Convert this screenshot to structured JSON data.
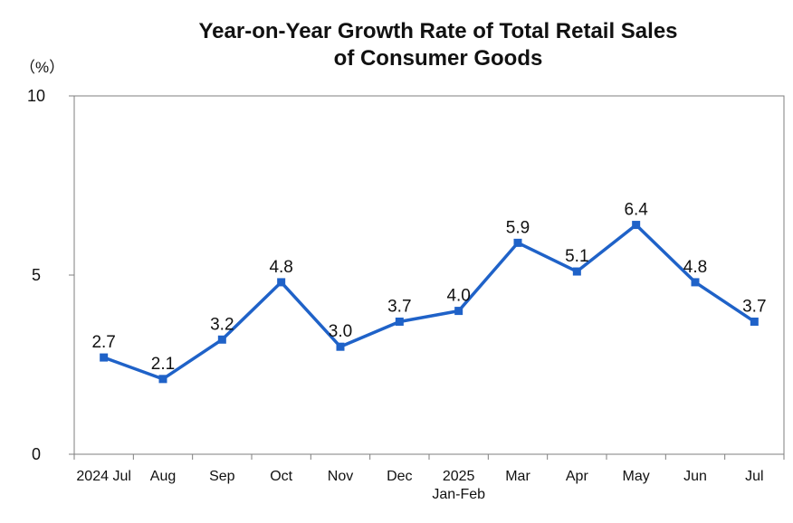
{
  "chart_data": {
    "type": "line",
    "title_line1": "Year-on-Year Growth Rate of Total Retail Sales",
    "title_line2": "of Consumer Goods",
    "ylabel": "（%）",
    "ylim": [
      0,
      10
    ],
    "yticks": [
      "0",
      "5",
      "10"
    ],
    "categories": [
      {
        "line1": "2024 Jul",
        "line2": ""
      },
      {
        "line1": "Aug",
        "line2": ""
      },
      {
        "line1": "Sep",
        "line2": ""
      },
      {
        "line1": "Oct",
        "line2": ""
      },
      {
        "line1": "Nov",
        "line2": ""
      },
      {
        "line1": "Dec",
        "line2": ""
      },
      {
        "line1": "2025",
        "line2": "Jan-Feb"
      },
      {
        "line1": "Mar",
        "line2": ""
      },
      {
        "line1": "Apr",
        "line2": ""
      },
      {
        "line1": "May",
        "line2": ""
      },
      {
        "line1": "Jun",
        "line2": ""
      },
      {
        "line1": "Jul",
        "line2": ""
      }
    ],
    "series": [
      {
        "values": [
          2.7,
          2.1,
          3.2,
          4.8,
          3.0,
          3.7,
          4.0,
          5.9,
          5.1,
          6.4,
          4.8,
          3.7
        ],
        "labels": [
          "2.7",
          "2.1",
          "3.2",
          "4.8",
          "3.0",
          "3.7",
          "4.0",
          "5.9",
          "5.1",
          "6.4",
          "4.8",
          "3.7"
        ]
      }
    ],
    "grid": false,
    "colors": {
      "line": "#1f62c8",
      "axis": "#7f7f7f"
    }
  }
}
